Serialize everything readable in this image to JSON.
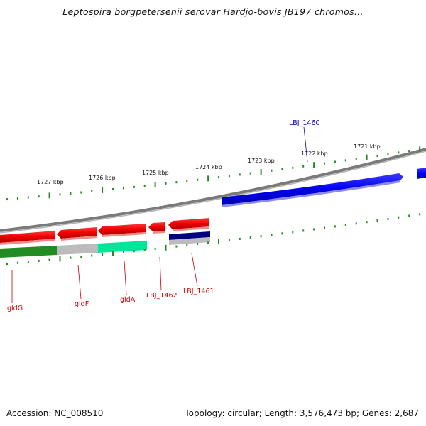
{
  "title": "Leptospira borgpetersenii serovar Hardjo-bovis JB197 chromos...",
  "footer": {
    "accession": "Accession: NC_008510",
    "info": "Topology: circular; Length: 3,576,473 bp; Genes: 2,687"
  },
  "colors": {
    "forward_gene": "#0000ee",
    "reverse_gene": "#ee0000",
    "backbone": "#808080",
    "tick": "#228b22",
    "label_blue": "#0000aa",
    "label_red": "#cc0000",
    "cog_green": "#228b22",
    "cog_teal": "#00e59a",
    "cog_gray": "#bcbcbc",
    "cog_navy": "#000080"
  },
  "scale_labels": [
    "1727 kbp",
    "1726 kbp",
    "1725 kbp",
    "1724 kbp",
    "1723 kbp",
    "1722 kbp",
    "1721 kbp"
  ],
  "gene_labels": {
    "lbj1460": "LBJ_1460",
    "gldG": "gldG",
    "gldF": "gldF",
    "gldA": "gldA",
    "lbj1462": "LBJ_1462",
    "lbj1461": "LBJ_1461"
  }
}
